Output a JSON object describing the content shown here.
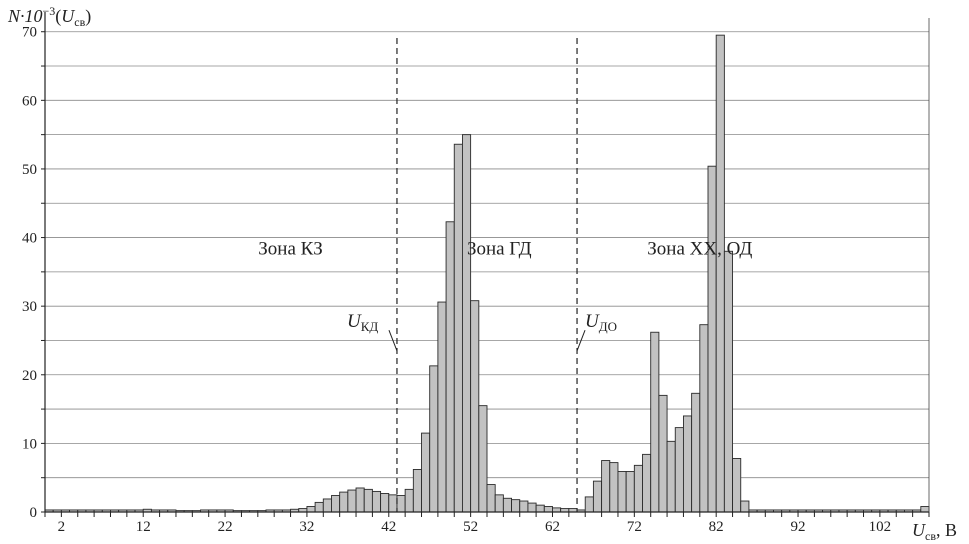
{
  "chart_data": {
    "type": "bar",
    "y_axis_title": {
      "prefix": "N·10",
      "exp": "−3",
      "open": "(",
      "var": "U",
      "sub": "св",
      "close": ")"
    },
    "x_axis_title": {
      "var": "U",
      "sub": "св",
      "unit": ", В"
    },
    "xlim": [
      0,
      108
    ],
    "ylim": [
      0,
      72
    ],
    "x_ticks": [
      2,
      12,
      22,
      32,
      42,
      52,
      62,
      72,
      82,
      92,
      102
    ],
    "y_ticks": [
      0,
      10,
      20,
      30,
      40,
      50,
      60,
      70
    ],
    "grid": "horizontal every 5",
    "bin_width": 1,
    "bins_x": [
      0,
      1,
      2,
      3,
      4,
      5,
      6,
      7,
      8,
      9,
      10,
      11,
      12,
      13,
      14,
      15,
      16,
      17,
      18,
      19,
      20,
      21,
      22,
      23,
      24,
      25,
      26,
      27,
      28,
      29,
      30,
      31,
      32,
      33,
      34,
      35,
      36,
      37,
      38,
      39,
      40,
      41,
      42,
      43,
      44,
      45,
      46,
      47,
      48,
      49,
      50,
      51,
      52,
      53,
      54,
      55,
      56,
      57,
      58,
      59,
      60,
      61,
      62,
      63,
      64,
      65,
      66,
      67,
      68,
      69,
      70,
      71,
      72,
      73,
      74,
      75,
      76,
      77,
      78,
      79,
      80,
      81,
      82,
      83,
      84,
      85,
      86,
      87,
      88,
      89,
      90,
      91,
      92,
      93,
      94,
      95,
      96,
      97,
      98,
      99,
      100,
      101,
      102,
      103,
      104,
      105,
      106,
      107
    ],
    "values": [
      0.3,
      0.3,
      0.3,
      0.3,
      0.3,
      0.3,
      0.3,
      0.3,
      0.3,
      0.3,
      0.3,
      0.3,
      0.4,
      0.3,
      0.3,
      0.3,
      0.2,
      0.2,
      0.2,
      0.3,
      0.3,
      0.3,
      0.3,
      0.2,
      0.2,
      0.2,
      0.2,
      0.3,
      0.3,
      0.3,
      0.4,
      0.5,
      0.8,
      1.4,
      1.9,
      2.4,
      2.9,
      3.2,
      3.5,
      3.3,
      3.0,
      2.7,
      2.5,
      2.4,
      3.3,
      6.2,
      11.5,
      21.3,
      30.6,
      42.3,
      53.6,
      55.0,
      30.8,
      15.5,
      4.0,
      2.5,
      2.0,
      1.8,
      1.6,
      1.3,
      1.0,
      0.8,
      0.6,
      0.5,
      0.5,
      0.3,
      2.2,
      4.5,
      7.5,
      7.2,
      5.9,
      5.9,
      6.8,
      8.4,
      26.2,
      17.0,
      10.3,
      12.3,
      14.0,
      17.3,
      27.3,
      50.4,
      69.5,
      38.0,
      7.8,
      1.6,
      0.3,
      0.3,
      0.3,
      0.3,
      0.3,
      0.3,
      0.3,
      0.3,
      0.3,
      0.3,
      0.3,
      0.3,
      0.3,
      0.3,
      0.3,
      0.3,
      0.3,
      0.3,
      0.3,
      0.3,
      0.3,
      0.8
    ],
    "boundaries": [
      {
        "x": 43,
        "label_var": "U",
        "label_sub": "КД"
      },
      {
        "x": 65,
        "label_var": "U",
        "label_sub": "ДО"
      }
    ],
    "zones": [
      {
        "label": "Зона КЗ",
        "x": 30,
        "y": 37.5
      },
      {
        "label": "Зона ГД",
        "x": 55.5,
        "y": 37.5
      },
      {
        "label": "Зона ХХ, ОД",
        "x": 80,
        "y": 37.5
      }
    ]
  }
}
